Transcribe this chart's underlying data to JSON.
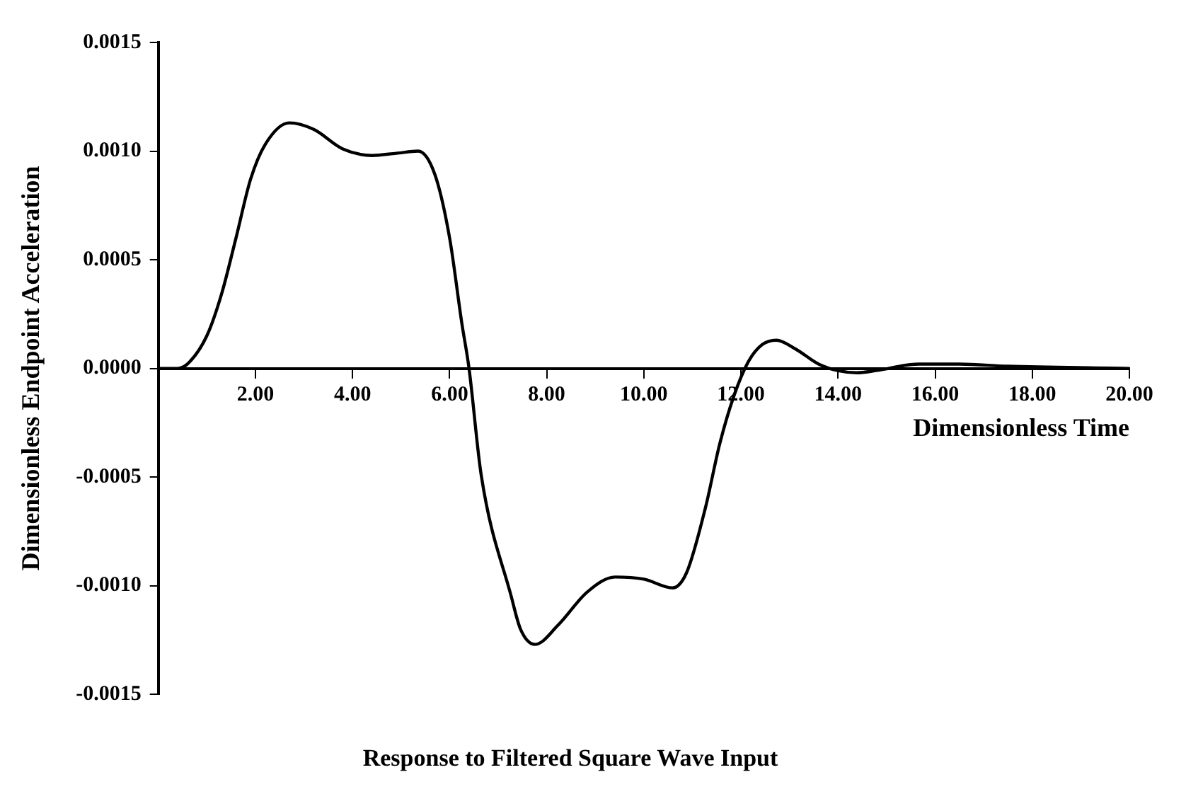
{
  "chart_data": {
    "type": "line",
    "title": "Response to Filtered Square Wave Input",
    "xlabel": "Dimensionless Time",
    "ylabel": "Dimensionless Endpoint Acceleration",
    "x": [
      0,
      0.4,
      0.6,
      1.0,
      1.3,
      1.6,
      1.9,
      2.2,
      2.7,
      3.2,
      3.8,
      4.4,
      4.9,
      5.35,
      5.7,
      6.0,
      6.25,
      6.4,
      6.65,
      7.27,
      7.46,
      7.76,
      8.24,
      8.83,
      9.41,
      10.0,
      10.59,
      10.88,
      11.27,
      11.56,
      11.85,
      12.15,
      12.44,
      12.73,
      13.12,
      13.6,
      13.99,
      14.39,
      14.78,
      15.66,
      16.5,
      17.5,
      20
    ],
    "series": [
      {
        "color": "#000000",
        "values": [
          0,
          0,
          2e-05,
          0.00015,
          0.00034,
          0.0006,
          0.00087,
          0.00103,
          0.00113,
          0.0011,
          0.00101,
          0.00098,
          0.00099,
          0.001,
          0.00089,
          0.0006,
          0.00021,
          0,
          -0.00049,
          -0.00105,
          -0.0012,
          -0.00127,
          -0.00118,
          -0.00103,
          -0.00096,
          -0.00097,
          -0.00101,
          -0.00094,
          -0.00064,
          -0.00035,
          -0.00013,
          3e-05,
          0.00011,
          0.00013,
          9e-05,
          2e-05,
          -1e-05,
          -2e-05,
          -1e-05,
          2e-05,
          2e-05,
          1e-05,
          0
        ]
      }
    ],
    "xlim": [
      0,
      20
    ],
    "xticks": [
      {
        "value": 2,
        "label": "2.00"
      },
      {
        "value": 4,
        "label": "4.00"
      },
      {
        "value": 6,
        "label": "6.00"
      },
      {
        "value": 8,
        "label": "8.00"
      },
      {
        "value": 10,
        "label": "10.00"
      },
      {
        "value": 12,
        "label": "12.00"
      },
      {
        "value": 14,
        "label": "14.00"
      },
      {
        "value": 16,
        "label": "16.00"
      },
      {
        "value": 18,
        "label": "18.00"
      },
      {
        "value": 20,
        "label": "20.00"
      }
    ],
    "ylim": [
      -0.0015,
      0.0015
    ],
    "yticks": [
      {
        "value": -0.0015,
        "label": "-0.0015"
      },
      {
        "value": -0.001,
        "label": "-0.0010"
      },
      {
        "value": -0.0005,
        "label": "-0.0005"
      },
      {
        "value": 0,
        "label": "0.0000"
      },
      {
        "value": 0.0005,
        "label": "0.0005"
      },
      {
        "value": 0.001,
        "label": "0.0010"
      },
      {
        "value": 0.0015,
        "label": "0.0015"
      }
    ],
    "grid": false,
    "legend": false,
    "marker": "none",
    "line_style": "solid"
  }
}
